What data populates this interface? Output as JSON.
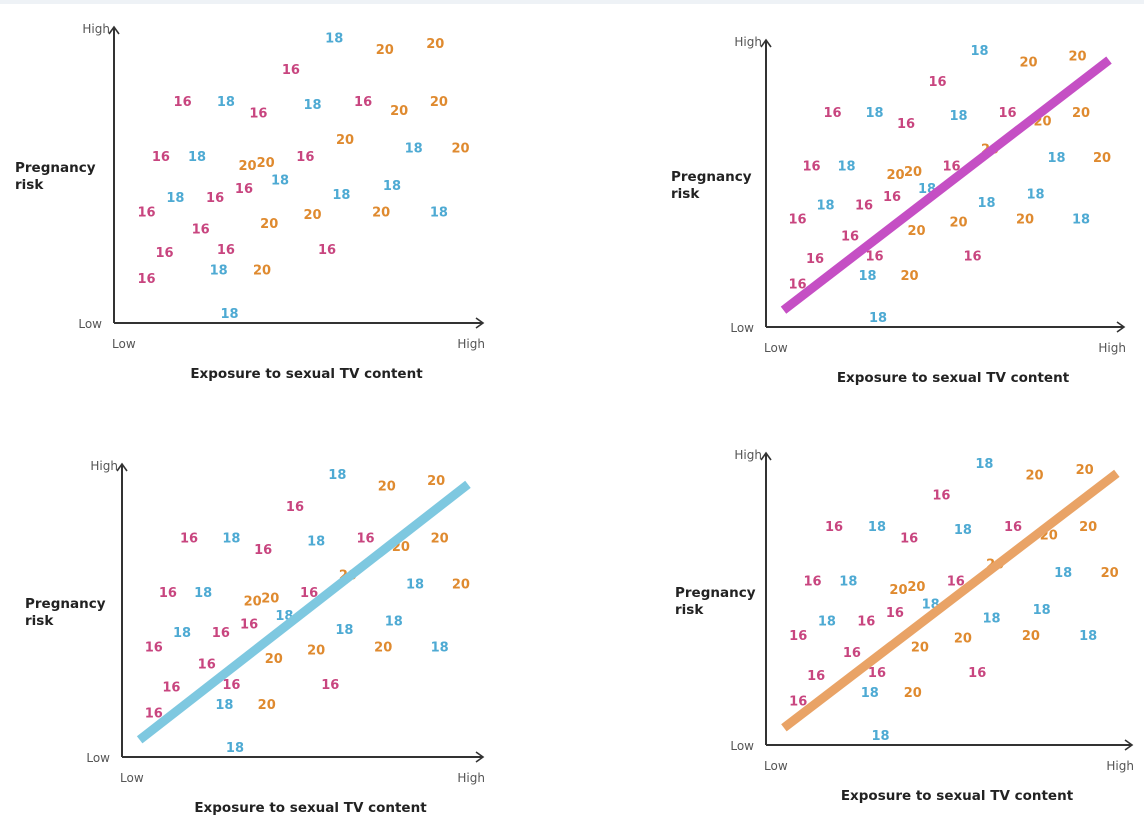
{
  "colors": {
    "16": "#c8457f",
    "18": "#4eaad3",
    "20": "#df8a2f",
    "axis": "#333333"
  },
  "chart_data": [
    {
      "type": "scatter",
      "xlabel": "Exposure to sexual TV content",
      "ylabel": "Pregnancy risk",
      "x_ticks": [
        "Low",
        "High"
      ],
      "y_ticks": [
        "Low",
        "High"
      ],
      "xlim": [
        0,
        100
      ],
      "ylim": [
        0,
        100
      ],
      "point_format": "[exposure, risk, label]",
      "points": [
        [
          61,
          98,
          "18"
        ],
        [
          75,
          94,
          "20"
        ],
        [
          89,
          96,
          "20"
        ],
        [
          49,
          87,
          "16"
        ],
        [
          19,
          76,
          "16"
        ],
        [
          31,
          76,
          "18"
        ],
        [
          40,
          72,
          "16"
        ],
        [
          55,
          75,
          "18"
        ],
        [
          69,
          76,
          "16"
        ],
        [
          79,
          73,
          "20"
        ],
        [
          90,
          76,
          "20"
        ],
        [
          64,
          63,
          "20"
        ],
        [
          83,
          60,
          "18"
        ],
        [
          96,
          60,
          "20"
        ],
        [
          13,
          57,
          "16"
        ],
        [
          23,
          57,
          "18"
        ],
        [
          37,
          54,
          "20"
        ],
        [
          42,
          55,
          "20"
        ],
        [
          53,
          57,
          "16"
        ],
        [
          46,
          49,
          "18"
        ],
        [
          17,
          43,
          "18"
        ],
        [
          28,
          43,
          "16"
        ],
        [
          36,
          46,
          "16"
        ],
        [
          63,
          44,
          "18"
        ],
        [
          77,
          47,
          "18"
        ],
        [
          9,
          38,
          "16"
        ],
        [
          55,
          37,
          "20"
        ],
        [
          74,
          38,
          "20"
        ],
        [
          90,
          38,
          "18"
        ],
        [
          24,
          32,
          "16"
        ],
        [
          43,
          34,
          "20"
        ],
        [
          14,
          24,
          "16"
        ],
        [
          31,
          25,
          "16"
        ],
        [
          59,
          25,
          "16"
        ],
        [
          29,
          18,
          "18"
        ],
        [
          41,
          18,
          "20"
        ],
        [
          9,
          15,
          "16"
        ],
        [
          32,
          3,
          "18"
        ]
      ],
      "trend_line": null
    },
    {
      "type": "scatter",
      "xlabel": "Exposure to sexual TV content",
      "ylabel": "Pregnancy risk",
      "x_ticks": [
        "Low",
        "High"
      ],
      "y_ticks": [
        "Low",
        "High"
      ],
      "xlim": [
        0,
        100
      ],
      "ylim": [
        0,
        100
      ],
      "points": "same as chart 1",
      "trend_line": {
        "from": [
          5,
          6
        ],
        "to": [
          98,
          95
        ],
        "color": "#c54fc4"
      }
    },
    {
      "type": "scatter",
      "xlabel": "Exposure to sexual TV content",
      "ylabel": "Pregnancy risk",
      "x_ticks": [
        "Low",
        "High"
      ],
      "y_ticks": [
        "Low",
        "High"
      ],
      "xlim": [
        0,
        100
      ],
      "ylim": [
        0,
        100
      ],
      "points": "same as chart 1",
      "trend_line": {
        "from": [
          5,
          6
        ],
        "to": [
          98,
          95
        ],
        "color": "#7ec8e0"
      }
    },
    {
      "type": "scatter",
      "xlabel": "Exposure to sexual TV content",
      "ylabel": "Pregnancy risk",
      "x_ticks": [
        "Low",
        "High"
      ],
      "y_ticks": [
        "Low",
        "High"
      ],
      "xlim": [
        0,
        100
      ],
      "ylim": [
        0,
        100
      ],
      "points": "same as chart 1",
      "trend_line": {
        "from": [
          5,
          6
        ],
        "to": [
          98,
          95
        ],
        "color": "#e9a366"
      }
    }
  ]
}
